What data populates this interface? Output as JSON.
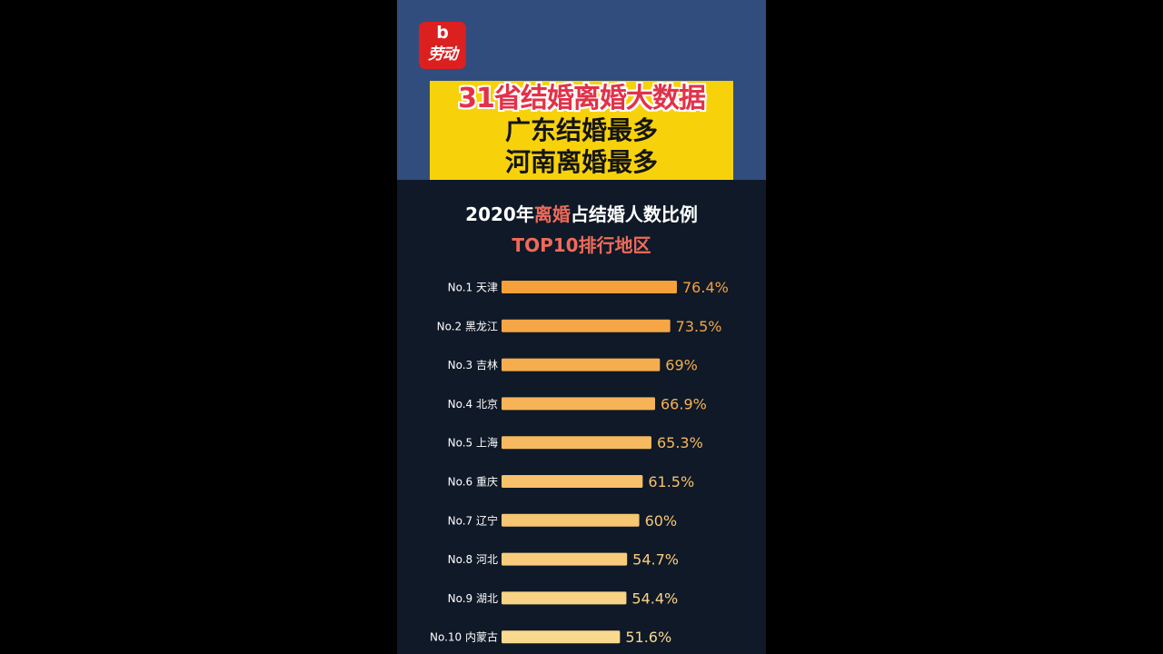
{
  "logo": {
    "mark": "b",
    "text": "劳动"
  },
  "banner": {
    "line1": "31省结婚离婚大数据",
    "line2": "广东结婚最多",
    "line3": "河南离婚最多"
  },
  "chart_title": {
    "prefix": "2020年",
    "highlight": "离婚",
    "suffix": "占结婚人数比例"
  },
  "chart_subtitle": "TOP10排行地区",
  "colors": {
    "bar_top": "#f6a03c",
    "bar_bottom": "#f8d98e",
    "highlight_text": "#ef6a5a",
    "banner_bg": "#f7d20a"
  },
  "chart_data": {
    "type": "bar",
    "orientation": "horizontal",
    "title": "2020年离婚占结婚人数比例",
    "subtitle": "TOP10排行地区",
    "categories": [
      "No.1 天津",
      "No.2 黑龙江",
      "No.3 吉林",
      "No.4 北京",
      "No.5 上海",
      "No.6 重庆",
      "No.7 辽宁",
      "No.8 河北",
      "No.9 湖北",
      "No.10 内蒙古"
    ],
    "values": [
      76.4,
      73.5,
      69,
      66.9,
      65.3,
      61.5,
      60,
      54.7,
      54.4,
      51.6
    ],
    "labels": [
      "76.4%",
      "73.5%",
      "69%",
      "66.9%",
      "65.3%",
      "61.5%",
      "60%",
      "54.7%",
      "54.4%",
      "51.6%"
    ],
    "unit": "%",
    "xlim": [
      0,
      76.4
    ],
    "grid": false,
    "legend": "none"
  }
}
